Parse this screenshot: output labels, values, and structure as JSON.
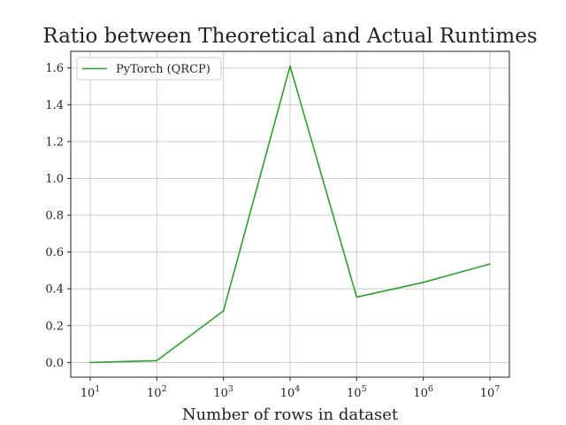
{
  "chart_data": {
    "type": "line",
    "title": "Ratio between Theoretical and Actual Runtimes",
    "xlabel": "Number of rows in dataset",
    "ylabel": "",
    "x_scale": "log",
    "x": [
      10,
      100,
      1000,
      10000,
      100000,
      1000000,
      10000000
    ],
    "x_tick_labels": [
      {
        "base": "10",
        "exp": "1"
      },
      {
        "base": "10",
        "exp": "2"
      },
      {
        "base": "10",
        "exp": "3"
      },
      {
        "base": "10",
        "exp": "4"
      },
      {
        "base": "10",
        "exp": "5"
      },
      {
        "base": "10",
        "exp": "6"
      },
      {
        "base": "10",
        "exp": "7"
      }
    ],
    "y_ticks": [
      "0.0",
      "0.2",
      "0.4",
      "0.6",
      "0.8",
      "1.0",
      "1.2",
      "1.4",
      "1.6"
    ],
    "xlim": [
      10,
      10000000
    ],
    "ylim": [
      -0.08,
      1.69
    ],
    "grid": true,
    "legend_position": "upper left",
    "series": [
      {
        "name": "PyTorch (QRCP)",
        "color": "#2ca02c",
        "values": [
          0.0,
          0.01,
          0.28,
          1.61,
          0.355,
          0.435,
          0.535
        ]
      }
    ]
  }
}
